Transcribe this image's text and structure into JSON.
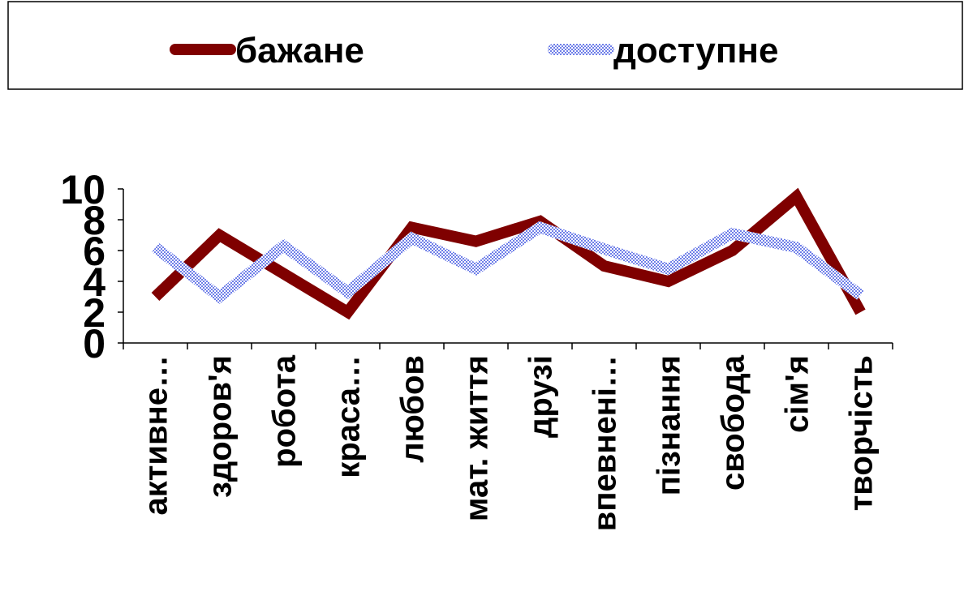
{
  "chart_data": {
    "type": "line",
    "title": "",
    "xlabel": "",
    "ylabel": "",
    "categories": [
      "активне…",
      "здоров'я",
      "робота",
      "краса…",
      "любов",
      "мат. життя",
      "друзі",
      "впевнені…",
      "пізнання",
      "свобода",
      "сім'я",
      "творчість"
    ],
    "yticks": [
      "0",
      "2",
      "4",
      "6",
      "8",
      "10"
    ],
    "ylim": [
      0,
      10
    ],
    "legend_position": "top",
    "grid": false,
    "series": [
      {
        "name": "бажане",
        "color": "#7f0000",
        "style": "solid",
        "values": [
          3,
          7,
          4.5,
          2,
          7.5,
          6.6,
          7.9,
          5,
          4,
          6,
          9.5,
          2
        ]
      },
      {
        "name": "доступне",
        "color": "#aeb7f2",
        "style": "dotted",
        "values": [
          6.2,
          3,
          6.3,
          3.3,
          6.8,
          4.8,
          7.5,
          6.1,
          4.8,
          7.1,
          6.2,
          3.1
        ]
      }
    ]
  }
}
